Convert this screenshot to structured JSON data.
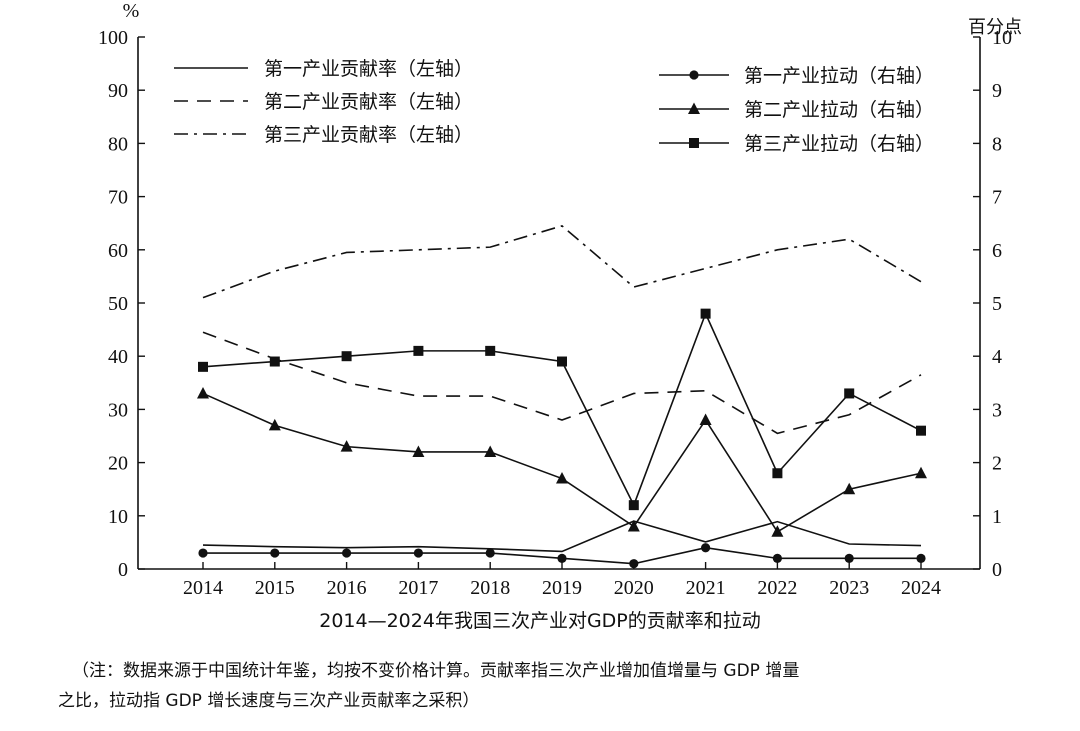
{
  "chart_data": {
    "type": "line",
    "title": "2014—2024年我国三次产业对GDP的贡献率和拉动",
    "left_axis_unit": "%",
    "right_axis_unit": "百分点",
    "ylim_left": [
      0,
      100
    ],
    "ylim_right": [
      0,
      10
    ],
    "left_ticks": [
      "0",
      "10",
      "20",
      "30",
      "40",
      "50",
      "60",
      "70",
      "80",
      "90",
      "100"
    ],
    "right_ticks": [
      "0",
      "1",
      "2",
      "3",
      "4",
      "5",
      "6",
      "7",
      "8",
      "9",
      "10"
    ],
    "categories": [
      "2014",
      "2015",
      "2016",
      "2017",
      "2018",
      "2019",
      "2020",
      "2021",
      "2022",
      "2023",
      "2024"
    ],
    "series": [
      {
        "name": "第一产业贡献率（左轴）",
        "axis": "left",
        "style": "solid",
        "marker": "none",
        "values": [
          4.5,
          4.2,
          4.0,
          4.2,
          3.8,
          3.3,
          9.0,
          5.1,
          8.9,
          4.7,
          4.4
        ]
      },
      {
        "name": "第二产业贡献率（左轴）",
        "axis": "left",
        "style": "dashed",
        "marker": "none",
        "values": [
          44.5,
          39.5,
          35.0,
          32.5,
          32.5,
          28.0,
          33.0,
          33.5,
          25.5,
          29.0,
          36.5
        ]
      },
      {
        "name": "第三产业贡献率（左轴）",
        "axis": "left",
        "style": "dashdot",
        "marker": "none",
        "values": [
          51.0,
          56.0,
          59.5,
          60.0,
          60.5,
          64.5,
          53.0,
          56.5,
          60.0,
          62.0,
          54.0
        ]
      },
      {
        "name": "第一产业拉动（右轴）",
        "axis": "right",
        "style": "solid",
        "marker": "circle",
        "values": [
          0.3,
          0.3,
          0.3,
          0.3,
          0.3,
          0.2,
          0.1,
          0.4,
          0.2,
          0.2,
          0.2
        ]
      },
      {
        "name": "第二产业拉动（右轴）",
        "axis": "right",
        "style": "solid",
        "marker": "triangle",
        "values": [
          3.3,
          2.7,
          2.3,
          2.2,
          2.2,
          1.7,
          0.8,
          2.8,
          0.7,
          1.5,
          1.8
        ]
      },
      {
        "name": "第三产业拉动（右轴）",
        "axis": "right",
        "style": "solid",
        "marker": "square",
        "values": [
          3.8,
          3.9,
          4.0,
          4.1,
          4.1,
          3.9,
          1.2,
          4.8,
          1.8,
          3.3,
          2.6
        ]
      }
    ],
    "legend_left": [
      "第一产业贡献率（左轴）",
      "第二产业贡献率（左轴）",
      "第三产业贡献率（左轴）"
    ],
    "legend_right": [
      "第一产业拉动（右轴）",
      "第二产业拉动（右轴）",
      "第三产业拉动（右轴）"
    ],
    "grid": false
  },
  "note_line1": "（注：数据来源于中国统计年鉴，均按不变价格计算。贡献率指三次产业增加值增量与 GDP 增量",
  "note_line2": "之比，拉动指 GDP 增长速度与三次产业贡献率之采积）"
}
